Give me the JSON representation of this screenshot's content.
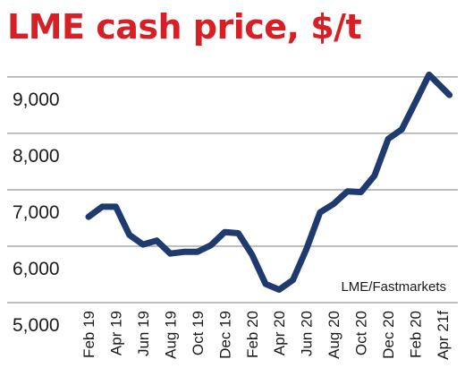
{
  "chart_data": {
    "type": "line",
    "title": "LME cash price, $/t",
    "source": "LME/Fastmarkets",
    "categories": [
      "Feb 19",
      "Apr 19",
      "Jun 19",
      "Aug 19",
      "Oct 19",
      "Dec 19",
      "Feb 20",
      "Apr 20",
      "Jun 20",
      "Aug 20",
      "Oct 20",
      "Dec 20",
      "Feb 20",
      "Apr 21f"
    ],
    "x": [
      0,
      0.5,
      1,
      1.5,
      2,
      2.5,
      3,
      3.5,
      4,
      4.5,
      5,
      5.5,
      6,
      6.5,
      7,
      7.5,
      8,
      8.5,
      9,
      9.5,
      10,
      10.5,
      11,
      11.5,
      12,
      12.5,
      13,
      13.25
    ],
    "values": [
      6520,
      6700,
      6700,
      6200,
      6030,
      6100,
      5870,
      5900,
      5900,
      6020,
      6250,
      6230,
      5850,
      5330,
      5230,
      5400,
      5950,
      6600,
      6750,
      6970,
      6960,
      7250,
      7900,
      8070,
      8550,
      9040,
      8800,
      8680
    ],
    "ylim": [
      5000,
      9300
    ],
    "yticks": [
      {
        "value": 5000,
        "label": "5,000"
      },
      {
        "value": 6000,
        "label": "6,000"
      },
      {
        "value": 7000,
        "label": "7,000"
      },
      {
        "value": 8000,
        "label": "8,000"
      },
      {
        "value": 9000,
        "label": "9,000"
      }
    ],
    "grid": true,
    "colors": {
      "title": "#d81f26",
      "line": "#1f3a6e",
      "grid": "#a7a9ac",
      "text": "#1a1a1a"
    }
  }
}
